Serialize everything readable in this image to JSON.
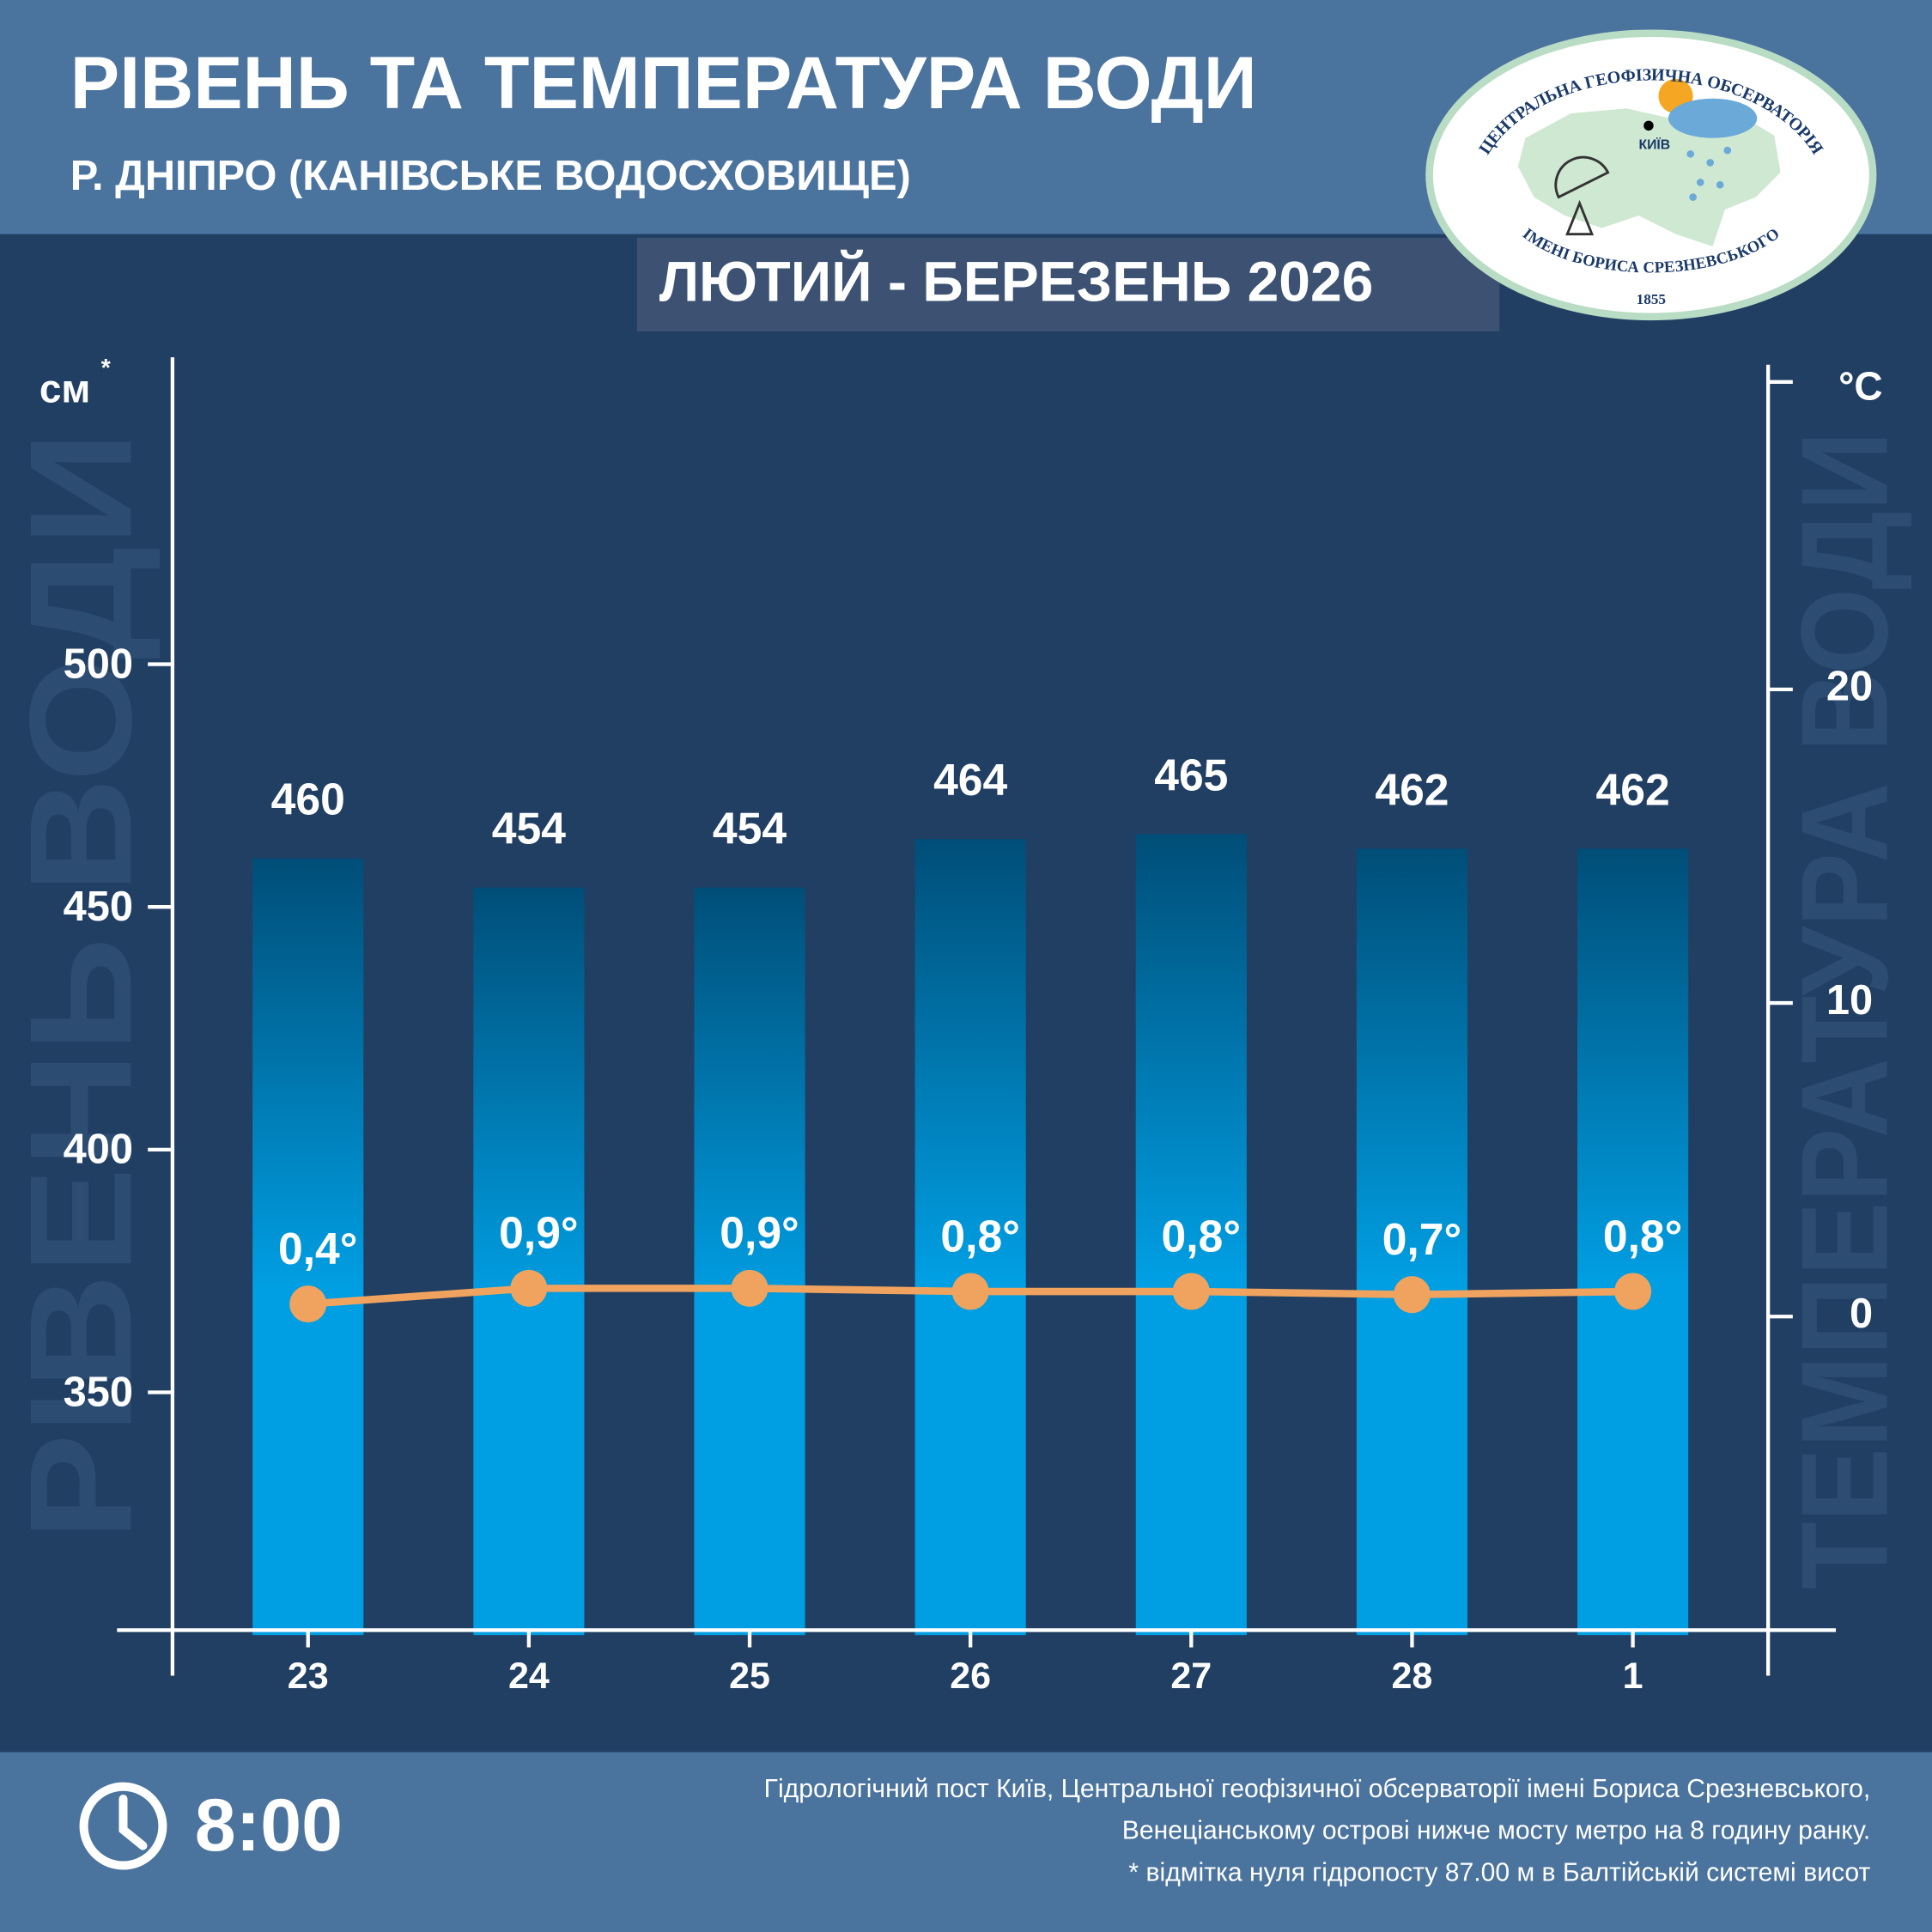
{
  "chart_data": {
    "type": "bar_line",
    "title": "РІВЕНЬ ТА ТЕМПЕРАТУРА ВОДИ",
    "subtitle": "Р. ДНІПРО (КАНІВСЬКЕ ВОДОСХОВИЩЕ)",
    "period": "ЛЮТИЙ - БЕРЕЗЕНЬ 2026",
    "y_axis_title": "РІВЕНЬ ВОДИ",
    "y_unit": "см",
    "y_unit_mark": "*",
    "y2_axis_title": "ТЕМПЕРАТУРА ВОДИ",
    "y2_unit": "°C",
    "categories": [
      "23",
      "24",
      "25",
      "26",
      "27",
      "28",
      "1"
    ],
    "series": [
      {
        "type": "bar",
        "gradient": [
          "#004e78",
          "#009ee2"
        ],
        "label_color": "#ffffff",
        "values": [
          460,
          454,
          454,
          464,
          465,
          462,
          462
        ]
      },
      {
        "type": "line",
        "axis": "y2",
        "color": "#f0a35e",
        "label_color": "#ffffff",
        "values": [
          0.4,
          0.9,
          0.9,
          0.8,
          0.8,
          0.7,
          0.8
        ],
        "value_labels": [
          "0,4°",
          "0,9°",
          "0,9°",
          "0,8°",
          "0,8°",
          "0,7°",
          "0,8°"
        ]
      }
    ],
    "ylim": [
      300,
      565
    ],
    "yticks": [
      350,
      400,
      450,
      500
    ],
    "y2lim": [
      -10,
      30
    ],
    "y2ticks": [
      0,
      10,
      20
    ]
  },
  "logo": {
    "top_text": "ЦЕНТРАЛЬНА ГЕОФІЗИЧНА ОБСЕРВАТОРІЯ",
    "bottom_text": "ІМЕНІ БОРИСА СРЕЗНЕВСЬКОГО",
    "year": "1855",
    "city": "КИЇВ"
  },
  "footer": {
    "time": "8:00",
    "note": [
      "Гідрологічний пост Київ, Центральної геофізичної обсерваторії імені Бориса Срезневського,",
      "Венеціанському острові нижче мосту метро  на 8 годину ранку.",
      "* відмітка нуля гідропосту 87.00 м в Балтійській системі висот"
    ]
  }
}
